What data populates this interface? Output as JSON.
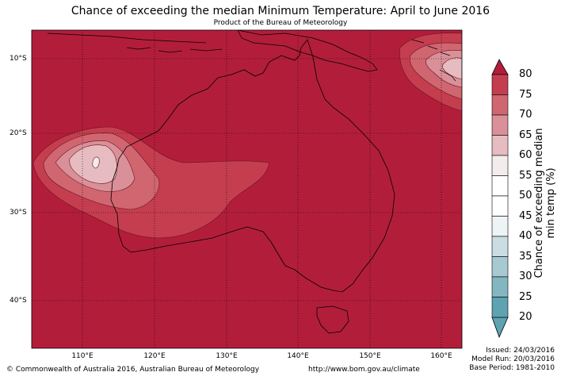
{
  "title": "Chance of exceeding the median Minimum Temperature: April to June 2016",
  "subtitle": "Product of the Bureau of Meteorology",
  "axes": {
    "lat_labels": [
      "10°S",
      "20°S",
      "30°S",
      "40°S"
    ],
    "lon_labels": [
      "110°E",
      "120°E",
      "130°E",
      "140°E",
      "150°E",
      "160°E"
    ]
  },
  "colorbar": {
    "label": "Chance of exceeding median min temp (%)",
    "ticks": [
      "80",
      "75",
      "70",
      "65",
      "60",
      "55",
      "50",
      "45",
      "40",
      "35",
      "30",
      "25",
      "20"
    ],
    "colors_top_to_bottom": [
      "#b21e3a",
      "#c43e50",
      "#cf6670",
      "#da9098",
      "#e6bcc0",
      "#f3eced",
      "#ffffff",
      "#ffffff",
      "#eef3f5",
      "#c9dde2",
      "#a7c9d1",
      "#84b6c1",
      "#5fa2b1"
    ]
  },
  "map": {
    "background_color": "#b21e3a",
    "land_outline_color": "#000000"
  },
  "footer": {
    "copyright": "© Commonwealth of Australia 2016, Australian Bureau of Meteorology",
    "url": "http://www.bom.gov.au/climate",
    "issued": "Issued: 24/03/2016",
    "model_run": "Model Run: 20/03/2016",
    "base_period": "Base Period: 1981-2010"
  }
}
